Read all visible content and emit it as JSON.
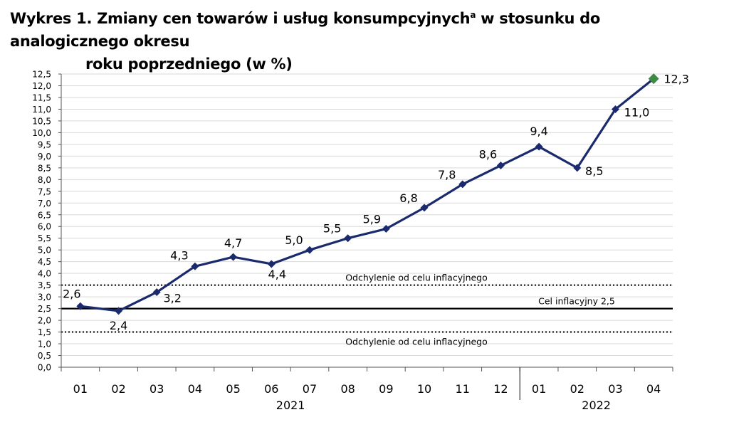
{
  "title": {
    "prefix": "Wykres 1. Zmiany cen towarów i usług konsumpcyjnych",
    "superscript": "a",
    "suffix": " w stosunku do analogicznego okresu",
    "line2": "roku poprzedniego (w %)"
  },
  "chart_data": {
    "type": "line",
    "categories": [
      "01",
      "02",
      "03",
      "04",
      "05",
      "06",
      "07",
      "08",
      "09",
      "10",
      "11",
      "12",
      "01",
      "02",
      "03",
      "04"
    ],
    "category_groups": [
      {
        "label": "2021",
        "start": 0,
        "end": 11
      },
      {
        "label": "2022",
        "start": 12,
        "end": 15
      }
    ],
    "series": [
      {
        "values": [
          2.6,
          2.4,
          3.2,
          4.3,
          4.7,
          4.4,
          5.0,
          5.5,
          5.9,
          6.8,
          7.8,
          8.6,
          9.4,
          8.5,
          11.0,
          12.3
        ],
        "labels": [
          "2,6",
          "2,4",
          "3,2",
          "4,3",
          "4,7",
          "4,4",
          "5,0",
          "5,5",
          "5,9",
          "6,8",
          "7,8",
          "8,6",
          "9,4",
          "8,5",
          "11,0",
          "12,3"
        ],
        "color": "#1a2a6c",
        "last_point_color": "#3f8a45"
      }
    ],
    "y_ticks": [
      0,
      0.5,
      1,
      1.5,
      2,
      2.5,
      3,
      3.5,
      4,
      4.5,
      5,
      5.5,
      6,
      6.5,
      7,
      7.5,
      8,
      8.5,
      9,
      9.5,
      10,
      10.5,
      11,
      11.5,
      12,
      12.5
    ],
    "y_tick_labels": [
      "0,0",
      "0,5",
      "1,0",
      "1,5",
      "2,0",
      "2,5",
      "3,0",
      "3,5",
      "4,0",
      "4,5",
      "5,0",
      "5,5",
      "6,0",
      "6,5",
      "7,0",
      "7,5",
      "8,0",
      "8,5",
      "9,0",
      "9,5",
      "10,0",
      "10,5",
      "11,0",
      "11,5",
      "12,0",
      "12,5"
    ],
    "ylim": [
      0,
      12.5
    ],
    "grid": true,
    "reference_lines": [
      {
        "value": 3.5,
        "style": "dotted",
        "label": "Odchylenie od celu inflacyjnego"
      },
      {
        "value": 2.5,
        "style": "solid",
        "label": "Cel inflacyjny 2,5"
      },
      {
        "value": 1.5,
        "style": "dotted",
        "label": "Odchylenie od celu inflacyjnego"
      }
    ],
    "xlabel": "",
    "ylabel": ""
  }
}
